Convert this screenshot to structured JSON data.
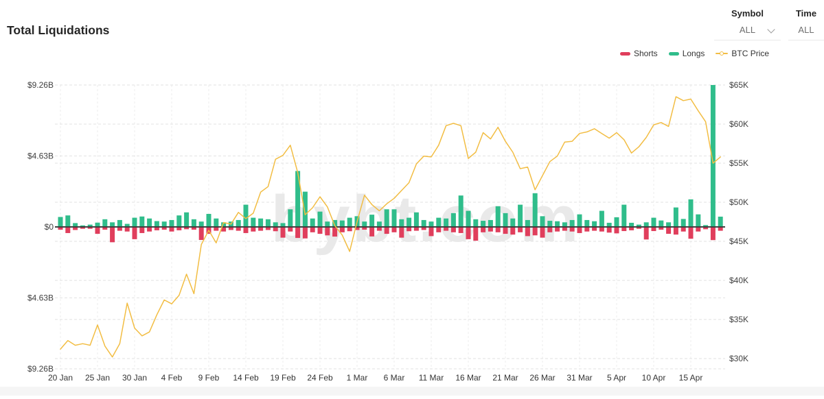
{
  "header": {
    "title": "Total Liquidations"
  },
  "controls": {
    "symbol": {
      "label": "Symbol",
      "value": "ALL"
    },
    "time": {
      "label": "Time",
      "value": "ALL"
    }
  },
  "legend": {
    "items": [
      {
        "label": "Shorts",
        "color": "#e03e5c",
        "marker": "bar"
      },
      {
        "label": "Longs",
        "color": "#30bd8b",
        "marker": "bar"
      },
      {
        "label": "BTC Price",
        "color": "#f2bd43",
        "marker": "line"
      }
    ]
  },
  "watermark": "bybt.com",
  "chart_data": {
    "type": "combo",
    "title": "Total Liquidations",
    "grid": "dashed horizontal and vertical gridlines",
    "legend_position": "top-right",
    "x_tick_labels": [
      "20 Jan",
      "25 Jan",
      "30 Jan",
      "4 Feb",
      "9 Feb",
      "14 Feb",
      "19 Feb",
      "24 Feb",
      "1 Mar",
      "6 Mar",
      "11 Mar",
      "16 Mar",
      "21 Mar",
      "26 Mar",
      "31 Mar",
      "5 Apr",
      "10 Apr",
      "15 Apr"
    ],
    "x_tick_step_days": 5,
    "categories": [
      "20 Jan",
      "21 Jan",
      "22 Jan",
      "23 Jan",
      "24 Jan",
      "25 Jan",
      "26 Jan",
      "27 Jan",
      "28 Jan",
      "29 Jan",
      "30 Jan",
      "31 Jan",
      "1 Feb",
      "2 Feb",
      "3 Feb",
      "4 Feb",
      "5 Feb",
      "6 Feb",
      "7 Feb",
      "8 Feb",
      "9 Feb",
      "10 Feb",
      "11 Feb",
      "12 Feb",
      "13 Feb",
      "14 Feb",
      "15 Feb",
      "16 Feb",
      "17 Feb",
      "18 Feb",
      "19 Feb",
      "20 Feb",
      "21 Feb",
      "22 Feb",
      "23 Feb",
      "24 Feb",
      "25 Feb",
      "26 Feb",
      "27 Feb",
      "28 Feb",
      "1 Mar",
      "2 Mar",
      "3 Mar",
      "4 Mar",
      "5 Mar",
      "6 Mar",
      "7 Mar",
      "8 Mar",
      "9 Mar",
      "10 Mar",
      "11 Mar",
      "12 Mar",
      "13 Mar",
      "14 Mar",
      "15 Mar",
      "16 Mar",
      "17 Mar",
      "18 Mar",
      "19 Mar",
      "20 Mar",
      "21 Mar",
      "22 Mar",
      "23 Mar",
      "24 Mar",
      "25 Mar",
      "26 Mar",
      "27 Mar",
      "28 Mar",
      "29 Mar",
      "30 Mar",
      "31 Mar",
      "1 Apr",
      "2 Apr",
      "3 Apr",
      "4 Apr",
      "5 Apr",
      "6 Apr",
      "7 Apr",
      "8 Apr",
      "9 Apr",
      "10 Apr",
      "11 Apr",
      "12 Apr",
      "13 Apr",
      "14 Apr",
      "15 Apr",
      "16 Apr",
      "17 Apr",
      "18 Apr",
      "19 Apr"
    ],
    "left_axis": {
      "tick_labels": [
        "$9.26B",
        "$4.63B",
        "$0",
        "$4.63B",
        "$9.26B"
      ],
      "tick_values": [
        9.26,
        4.63,
        0,
        -4.63,
        -9.26
      ],
      "max": 9.26,
      "unit": "billions USD (longs up, shorts down)"
    },
    "right_axis": {
      "tick_labels": [
        "$65K",
        "$60K",
        "$55K",
        "$50K",
        "$45K",
        "$40K",
        "$35K",
        "$30K"
      ],
      "tick_values": [
        65,
        60,
        55,
        50,
        45,
        40,
        35,
        30
      ],
      "min": 30,
      "max": 65,
      "unit": "thousands USD"
    },
    "series": [
      {
        "name": "Shorts",
        "type": "bar",
        "axis": "left",
        "unit": "$B",
        "plot_direction": "down",
        "color": "#e03e5c",
        "values": [
          0.18,
          0.4,
          0.2,
          0.12,
          0.12,
          0.45,
          0.18,
          1.0,
          0.25,
          0.3,
          0.8,
          0.4,
          0.3,
          0.22,
          0.18,
          0.3,
          0.22,
          0.15,
          0.18,
          0.85,
          0.45,
          0.25,
          0.3,
          0.2,
          0.25,
          0.4,
          0.3,
          0.25,
          0.2,
          0.28,
          0.7,
          0.3,
          0.72,
          0.75,
          0.35,
          0.45,
          0.55,
          0.63,
          0.35,
          0.28,
          0.2,
          0.18,
          0.62,
          0.25,
          0.45,
          0.35,
          0.7,
          0.28,
          0.25,
          0.2,
          0.6,
          0.35,
          0.25,
          0.35,
          0.4,
          0.8,
          0.9,
          0.35,
          0.3,
          0.35,
          0.45,
          0.5,
          0.35,
          0.6,
          0.55,
          0.7,
          0.35,
          0.3,
          0.25,
          0.3,
          0.4,
          0.3,
          0.25,
          0.3,
          0.37,
          0.42,
          0.27,
          0.22,
          0.12,
          0.82,
          0.27,
          0.18,
          0.45,
          0.5,
          0.3,
          0.77,
          0.3,
          0.15,
          0.86,
          0.25
        ]
      },
      {
        "name": "Longs",
        "type": "bar",
        "axis": "left",
        "unit": "$B",
        "plot_direction": "up",
        "color": "#30bd8b",
        "values": [
          0.65,
          0.75,
          0.25,
          0.1,
          0.15,
          0.28,
          0.5,
          0.3,
          0.45,
          0.2,
          0.6,
          0.68,
          0.55,
          0.38,
          0.35,
          0.45,
          0.75,
          0.95,
          0.5,
          0.35,
          0.85,
          0.55,
          0.3,
          0.35,
          0.45,
          1.45,
          0.6,
          0.55,
          0.5,
          0.3,
          0.25,
          1.15,
          3.65,
          2.3,
          0.55,
          1.0,
          0.35,
          0.45,
          0.42,
          0.6,
          0.7,
          0.35,
          0.8,
          0.35,
          1.15,
          1.15,
          0.5,
          0.6,
          0.95,
          0.45,
          0.35,
          0.6,
          0.55,
          0.9,
          2.05,
          1.05,
          0.5,
          0.4,
          0.45,
          1.35,
          0.9,
          0.55,
          1.45,
          0.45,
          2.2,
          0.7,
          0.4,
          0.37,
          0.3,
          0.45,
          0.82,
          0.45,
          0.37,
          1.05,
          0.27,
          0.63,
          1.45,
          0.27,
          0.15,
          0.3,
          0.6,
          0.42,
          0.3,
          1.27,
          0.52,
          1.8,
          0.82,
          0.12,
          9.26,
          0.67
        ]
      },
      {
        "name": "BTC Price",
        "type": "line",
        "axis": "right",
        "unit": "$K",
        "color": "#f2bd43",
        "values": [
          31.2,
          32.3,
          31.7,
          31.9,
          31.7,
          34.3,
          31.6,
          30.2,
          31.9,
          37.1,
          33.9,
          32.9,
          33.4,
          35.6,
          37.5,
          37.0,
          38.1,
          40.8,
          38.3,
          44.6,
          46.4,
          44.8,
          47.4,
          47.2,
          48.7,
          47.9,
          48.6,
          51.3,
          52.0,
          55.5,
          56.0,
          57.3,
          53.8,
          48.4,
          49.3,
          50.7,
          49.4,
          47.0,
          45.8,
          43.7,
          47.5,
          50.9,
          49.7,
          48.9,
          49.8,
          50.5,
          51.5,
          52.5,
          54.9,
          55.9,
          55.8,
          57.3,
          59.8,
          60.1,
          59.8,
          55.6,
          56.4,
          58.9,
          58.1,
          59.6,
          57.8,
          56.4,
          54.3,
          54.5,
          51.6,
          53.4,
          55.2,
          55.9,
          57.7,
          57.8,
          58.8,
          59.0,
          59.4,
          58.8,
          58.2,
          58.9,
          58.0,
          56.3,
          57.1,
          58.3,
          59.9,
          60.2,
          59.7,
          63.5,
          63.0,
          63.2,
          61.7,
          60.3,
          55.0,
          55.8
        ]
      }
    ]
  }
}
